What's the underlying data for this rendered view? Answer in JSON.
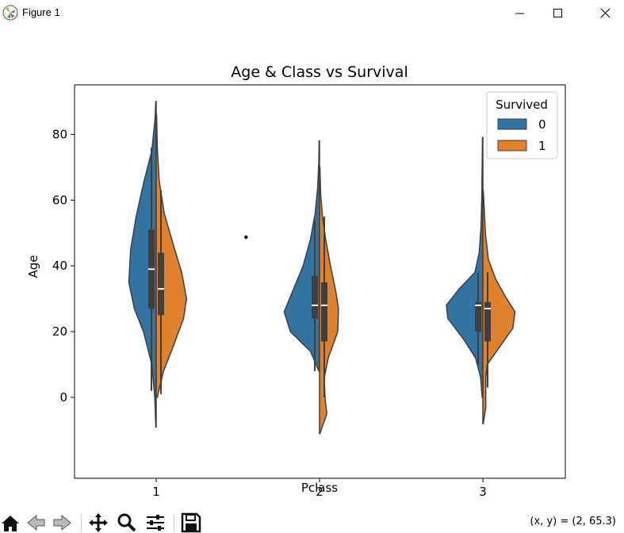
{
  "window": {
    "title": "Figure 1"
  },
  "toolbar": {
    "items": [
      "home-icon",
      "back-icon",
      "forward-icon",
      "pan-icon",
      "zoom-icon",
      "configure-icon",
      "save-icon"
    ],
    "coords": "(x, y) = (2, 65.3)"
  },
  "colors": {
    "survived_0": "#3274a1",
    "survived_1": "#e1812c",
    "box": "#3f3f3f"
  },
  "chart_data": {
    "type": "violin",
    "title": "Age & Class vs Survival",
    "xlabel": "Pclass",
    "ylabel": "Age",
    "categories": [
      "1",
      "2",
      "3"
    ],
    "ylim": [
      -16,
      95
    ],
    "yticks": [
      0,
      20,
      40,
      60,
      80
    ],
    "grid": false,
    "legend": {
      "title": "Survived",
      "position": "top-right",
      "entries": [
        "0",
        "1"
      ]
    },
    "series": [
      {
        "name": "0",
        "violins": [
          {
            "category": "1",
            "min": -9,
            "max": 90,
            "q1": 27,
            "median": 39,
            "q3": 51,
            "whisker_low": 2,
            "whisker_high": 76,
            "density": [
              [
                -9,
                0.01
              ],
              [
                0,
                0.04
              ],
              [
                10,
                0.12
              ],
              [
                20,
                0.35
              ],
              [
                27,
                0.6
              ],
              [
                35,
                0.75
              ],
              [
                45,
                0.7
              ],
              [
                55,
                0.55
              ],
              [
                65,
                0.35
              ],
              [
                75,
                0.12
              ],
              [
                85,
                0.03
              ],
              [
                90,
                0.01
              ]
            ]
          },
          {
            "category": "2",
            "min": 8,
            "max": 78,
            "q1": 24,
            "median": 28,
            "q3": 37,
            "whisker_low": 8,
            "whisker_high": 54,
            "density": [
              [
                8,
                0.02
              ],
              [
                14,
                0.25
              ],
              [
                20,
                0.8
              ],
              [
                26,
                0.97
              ],
              [
                32,
                0.75
              ],
              [
                40,
                0.45
              ],
              [
                48,
                0.25
              ],
              [
                56,
                0.12
              ],
              [
                64,
                0.05
              ],
              [
                72,
                0.02
              ],
              [
                78,
                0.01
              ]
            ]
          },
          {
            "category": "3",
            "min": 0,
            "max": 79,
            "q1": 20,
            "median": 28,
            "q3": 29,
            "whisker_low": 10,
            "whisker_high": 38,
            "density": [
              [
                0,
                0.02
              ],
              [
                6,
                0.06
              ],
              [
                12,
                0.2
              ],
              [
                18,
                0.55
              ],
              [
                24,
                0.96
              ],
              [
                28,
                1.0
              ],
              [
                33,
                0.65
              ],
              [
                38,
                0.22
              ],
              [
                44,
                0.1
              ],
              [
                52,
                0.05
              ],
              [
                60,
                0.03
              ],
              [
                70,
                0.02
              ],
              [
                79,
                0.01
              ]
            ]
          }
        ]
      },
      {
        "name": "1",
        "violins": [
          {
            "category": "1",
            "min": 0,
            "max": 86,
            "q1": 25,
            "median": 33,
            "q3": 44,
            "whisker_low": 1,
            "whisker_high": 63,
            "density": [
              [
                0,
                0.03
              ],
              [
                8,
                0.2
              ],
              [
                15,
                0.45
              ],
              [
                24,
                0.75
              ],
              [
                30,
                0.83
              ],
              [
                38,
                0.7
              ],
              [
                46,
                0.48
              ],
              [
                56,
                0.22
              ],
              [
                66,
                0.08
              ],
              [
                76,
                0.03
              ],
              [
                86,
                0.01
              ]
            ]
          },
          {
            "category": "2",
            "min": -11,
            "max": 70,
            "q1": 17,
            "median": 28,
            "q3": 35,
            "whisker_low": 0,
            "whisker_high": 55,
            "density": [
              [
                -11,
                0.01
              ],
              [
                -5,
                0.2
              ],
              [
                0,
                0.15
              ],
              [
                6,
                0.13
              ],
              [
                12,
                0.24
              ],
              [
                20,
                0.5
              ],
              [
                27,
                0.52
              ],
              [
                32,
                0.45
              ],
              [
                40,
                0.3
              ],
              [
                48,
                0.17
              ],
              [
                55,
                0.08
              ],
              [
                62,
                0.03
              ],
              [
                70,
                0.01
              ]
            ]
          },
          {
            "category": "3",
            "min": -8,
            "max": 63,
            "q1": 17,
            "median": 27,
            "q3": 29,
            "whisker_low": 3,
            "whisker_high": 38,
            "density": [
              [
                -8,
                0.01
              ],
              [
                -3,
                0.08
              ],
              [
                2,
                0.08
              ],
              [
                6,
                0.08
              ],
              [
                10,
                0.12
              ],
              [
                16,
                0.5
              ],
              [
                21,
                0.82
              ],
              [
                26,
                0.88
              ],
              [
                31,
                0.6
              ],
              [
                36,
                0.35
              ],
              [
                42,
                0.15
              ],
              [
                50,
                0.07
              ],
              [
                57,
                0.04
              ],
              [
                63,
                0.01
              ]
            ]
          }
        ]
      }
    ],
    "annotations": [
      {
        "type": "point",
        "x": 1.55,
        "y": 48.7
      }
    ]
  }
}
